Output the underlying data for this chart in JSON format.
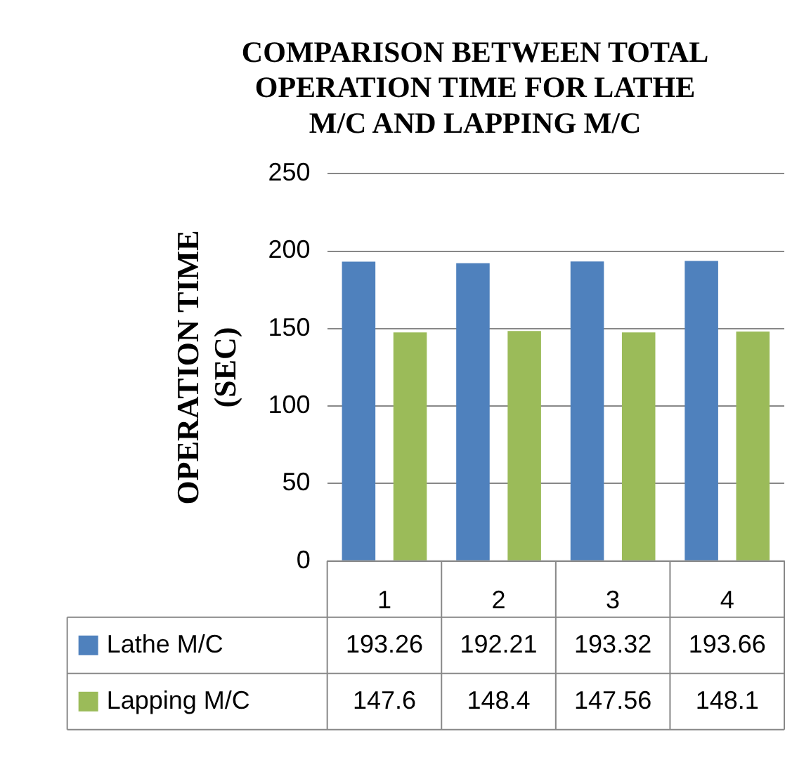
{
  "chart_data": {
    "type": "bar",
    "title": "COMPARISON BETWEEN TOTAL OPERATION TIME FOR LATHE M/C AND LAPPING M/C",
    "ylabel": "OPERATION TIME (SEC)",
    "categories": [
      "1",
      "2",
      "3",
      "4"
    ],
    "series": [
      {
        "name": "Lathe M/C",
        "color": "#4f81bd",
        "values": [
          193.26,
          192.21,
          193.32,
          193.66
        ]
      },
      {
        "name": "Lapping M/C",
        "color": "#9bbb59",
        "values": [
          147.6,
          148.4,
          147.56,
          148.1
        ]
      }
    ],
    "ylim": [
      0,
      250
    ],
    "yticks": [
      0,
      50,
      100,
      150,
      200,
      250
    ],
    "grid": "y",
    "legend": "bottom",
    "data_labels": true
  }
}
